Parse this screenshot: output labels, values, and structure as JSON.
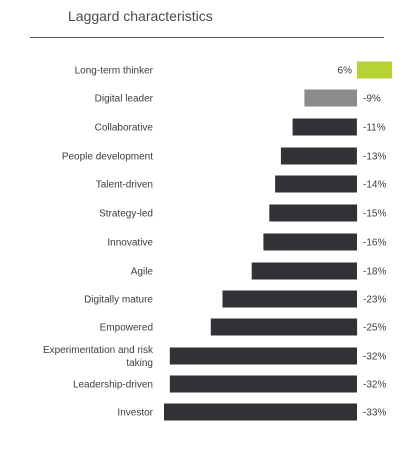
{
  "chart_data": {
    "type": "bar",
    "orientation": "horizontal",
    "title": "Laggard characteristics",
    "categories": [
      "Long-term thinker",
      "Digital leader",
      "Collaborative",
      "People development",
      "Talent-driven",
      "Strategy-led",
      "Innovative",
      "Agile",
      "Digitally mature",
      "Empowered",
      "Experimentation and risk taking",
      "Leadership-driven",
      "Investor"
    ],
    "values": [
      6,
      -9,
      -11,
      -13,
      -14,
      -15,
      -16,
      -18,
      -23,
      -25,
      -32,
      -32,
      -33
    ],
    "data_labels": [
      "6%",
      "-9%",
      "-11%",
      "-13%",
      "-14%",
      "-15%",
      "-16%",
      "-18%",
      "-23%",
      "-25%",
      "-32%",
      "-32%",
      "-33%"
    ],
    "colors": [
      "#b5d334",
      "#8c8c8c",
      "#303236",
      "#303236",
      "#303236",
      "#303236",
      "#303236",
      "#303236",
      "#303236",
      "#303236",
      "#303236",
      "#303236",
      "#303236"
    ],
    "xlim": [
      -33,
      6
    ],
    "grid": false,
    "legend": false
  }
}
